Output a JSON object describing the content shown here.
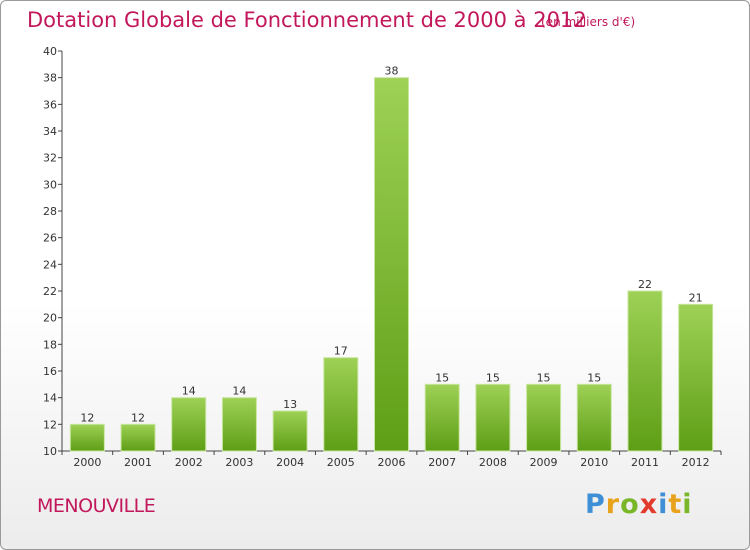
{
  "header": {
    "title": "Dotation Globale de Fonctionnement de 2000 à 2012",
    "subtitle": "(en milliers d'€)"
  },
  "footer": {
    "commune": "MENOUVILLE",
    "logo": {
      "letters": [
        "P",
        "r",
        "o",
        "x",
        "i",
        "t",
        "i"
      ],
      "colors": [
        "#3f8fd6",
        "#e8a21c",
        "#79b728",
        "#e23b2e",
        "#3f8fd6",
        "#e8a21c",
        "#79b728"
      ]
    }
  },
  "colors": {
    "title": "#c2185b",
    "bar_top": "#9ed156",
    "bar_bottom": "#5e9e16",
    "axis": "#444444",
    "grid": "#cccccc"
  },
  "chart_data": {
    "type": "bar",
    "categories": [
      "2000",
      "2001",
      "2002",
      "2003",
      "2004",
      "2005",
      "2006",
      "2007",
      "2008",
      "2009",
      "2010",
      "2011",
      "2012"
    ],
    "values": [
      12,
      12,
      14,
      14,
      13,
      17,
      38,
      15,
      15,
      15,
      15,
      22,
      21
    ],
    "ylim": [
      10,
      40
    ],
    "yticks": [
      10,
      12,
      14,
      16,
      18,
      20,
      22,
      24,
      26,
      28,
      30,
      32,
      34,
      36,
      38,
      40
    ],
    "data_labels": [
      "12",
      "12",
      "14",
      "14",
      "13",
      "17",
      "38",
      "15",
      "15",
      "15",
      "15",
      "22",
      "21"
    ],
    "grid": false
  }
}
